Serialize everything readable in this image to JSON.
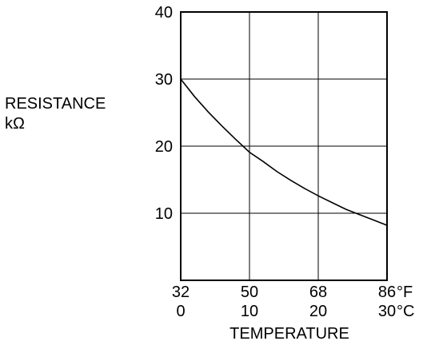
{
  "chart_data": {
    "type": "line",
    "title": "",
    "ylabel_lines": [
      "RESISTANCE",
      "kΩ"
    ],
    "xlabel": "TEMPERATURE",
    "ylim": [
      0,
      40
    ],
    "xlim": [
      0,
      30
    ],
    "y_ticks": [
      10,
      20,
      30,
      40
    ],
    "x_ticks_fahrenheit": [
      "32",
      "50",
      "68",
      "86"
    ],
    "x_ticks_celsius": [
      "0",
      "10",
      "20",
      "30"
    ],
    "x_unit_fahrenheit": "°F",
    "x_unit_celsius": "°C",
    "x_tick_values": [
      0,
      10,
      20,
      30
    ],
    "grid": true,
    "series": [
      {
        "x": [
          0,
          2,
          4,
          6,
          8,
          10,
          12,
          14,
          16,
          18,
          20,
          22,
          24,
          26,
          28,
          30
        ],
        "y": [
          30.0,
          27.4,
          25.1,
          23.0,
          21.0,
          19.1,
          17.7,
          16.2,
          14.9,
          13.7,
          12.6,
          11.6,
          10.6,
          9.8,
          9.0,
          8.2
        ]
      }
    ],
    "line_color": "#000000"
  }
}
